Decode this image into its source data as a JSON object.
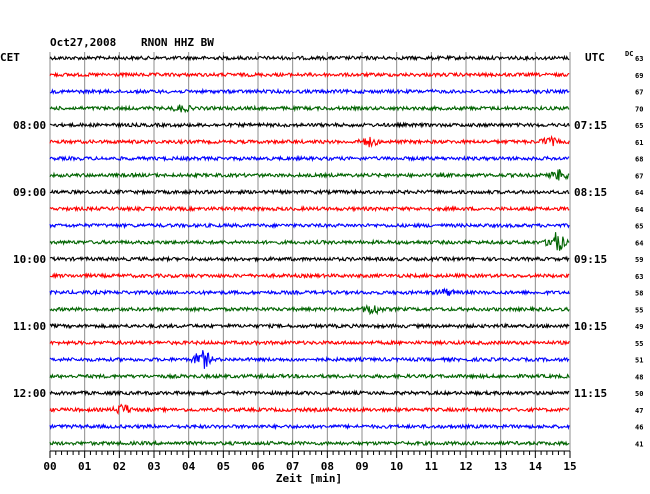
{
  "header": {
    "date": "Oct27,2008",
    "station": "RNON HHZ BW",
    "left_zone": "CET",
    "right_zone": "UTC",
    "dc_label": "DC"
  },
  "chart_data": {
    "type": "line",
    "title": "Oct27,2008  RNON HHZ BW",
    "xlabel": "Zeit [min]",
    "xlim": [
      0,
      15
    ],
    "x_ticks": [
      "00",
      "01",
      "02",
      "03",
      "04",
      "05",
      "06",
      "07",
      "08",
      "09",
      "10",
      "11",
      "12",
      "13",
      "14",
      "15"
    ],
    "grid": "vertical lines every minute",
    "trace_count": 24,
    "trace_colors": [
      "#000000",
      "#ff0000",
      "#0000ff",
      "#006400"
    ],
    "left_hour_labels": [
      {
        "trace": 4,
        "label": "08:00"
      },
      {
        "trace": 8,
        "label": "09:00"
      },
      {
        "trace": 12,
        "label": "10:00"
      },
      {
        "trace": 16,
        "label": "11:00"
      },
      {
        "trace": 20,
        "label": "12:00"
      }
    ],
    "right_hour_labels": [
      {
        "trace": 4,
        "label": "07:15"
      },
      {
        "trace": 8,
        "label": "08:15"
      },
      {
        "trace": 12,
        "label": "09:15"
      },
      {
        "trace": 16,
        "label": "10:15"
      },
      {
        "trace": 20,
        "label": "11:15"
      }
    ],
    "dc_values": [
      63,
      69,
      67,
      70,
      65,
      61,
      68,
      67,
      64,
      64,
      65,
      64,
      59,
      63,
      58,
      55,
      49,
      55,
      51,
      48,
      50,
      47,
      46,
      41
    ],
    "events": [
      {
        "trace": 3,
        "minute": 3.8,
        "amplitude": 3
      },
      {
        "trace": 5,
        "minute": 9.2,
        "amplitude": 4
      },
      {
        "trace": 5,
        "minute": 14.4,
        "amplitude": 4
      },
      {
        "trace": 7,
        "minute": 14.7,
        "amplitude": 5
      },
      {
        "trace": 11,
        "minute": 14.6,
        "amplitude": 10
      },
      {
        "trace": 14,
        "minute": 11.4,
        "amplitude": 3
      },
      {
        "trace": 15,
        "minute": 9.3,
        "amplitude": 5
      },
      {
        "trace": 18,
        "minute": 4.4,
        "amplitude": 9
      },
      {
        "trace": 21,
        "minute": 2.1,
        "amplitude": 5
      }
    ]
  }
}
